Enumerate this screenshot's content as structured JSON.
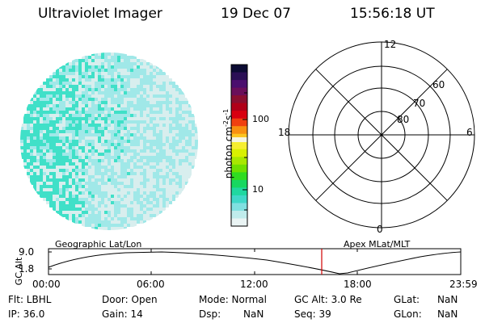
{
  "header": {
    "title": "Ultraviolet Imager",
    "date": "19 Dec 07",
    "time": "15:56:18 UT"
  },
  "colorbar": {
    "label": "photon cm",
    "label_sup1": "-2",
    "label_mid": "s",
    "label_sup2": "-1",
    "tick_labels": [
      "100",
      "10"
    ],
    "colors": [
      "#0b0b33",
      "#2a0f55",
      "#4b0f6e",
      "#6a0f5a",
      "#8a0f30",
      "#b00018",
      "#d80010",
      "#f04010",
      "#f89010",
      "#fcc520",
      "#f6ee30",
      "#d8f000",
      "#a8e800",
      "#70e000",
      "#30dc20",
      "#18d860",
      "#20d8a0",
      "#40d8c8",
      "#80e0e0",
      "#c0ecec",
      "#eaf4f4"
    ],
    "highlight_color": "#f5f5e0"
  },
  "polar": {
    "mlt_labels": [
      "12",
      "18",
      "6",
      "0"
    ],
    "lat_labels": [
      "60",
      "70",
      "80"
    ]
  },
  "globe": {
    "colors": [
      "#40e0c8",
      "#a0e8e8",
      "#d8eeee"
    ]
  },
  "timeline": {
    "label_left": "Geographic Lat/Lon",
    "label_right": "Apex MLat/MLT",
    "y_axis_title": "GC Alt",
    "y_ticks": [
      "9.0",
      "1.8"
    ],
    "x_ticks": [
      "00:00",
      "06:00",
      "12:00",
      "18:00",
      "23:59"
    ],
    "marker_color": "#d00000"
  },
  "status": {
    "filter": "Flt: LBHL",
    "ip": "IP: 36.0",
    "door": "Door: Open",
    "gain": "Gain: 14",
    "mode": "Mode: Normal",
    "dsp_label": "Dsp:",
    "dsp_value": "NaN",
    "gc_alt": "GC Alt: 3.0 Re",
    "seq": "Seq: 39",
    "glat_label": "GLat:",
    "glat_value": "NaN",
    "glon_label": "GLon:",
    "glon_value": "NaN"
  }
}
